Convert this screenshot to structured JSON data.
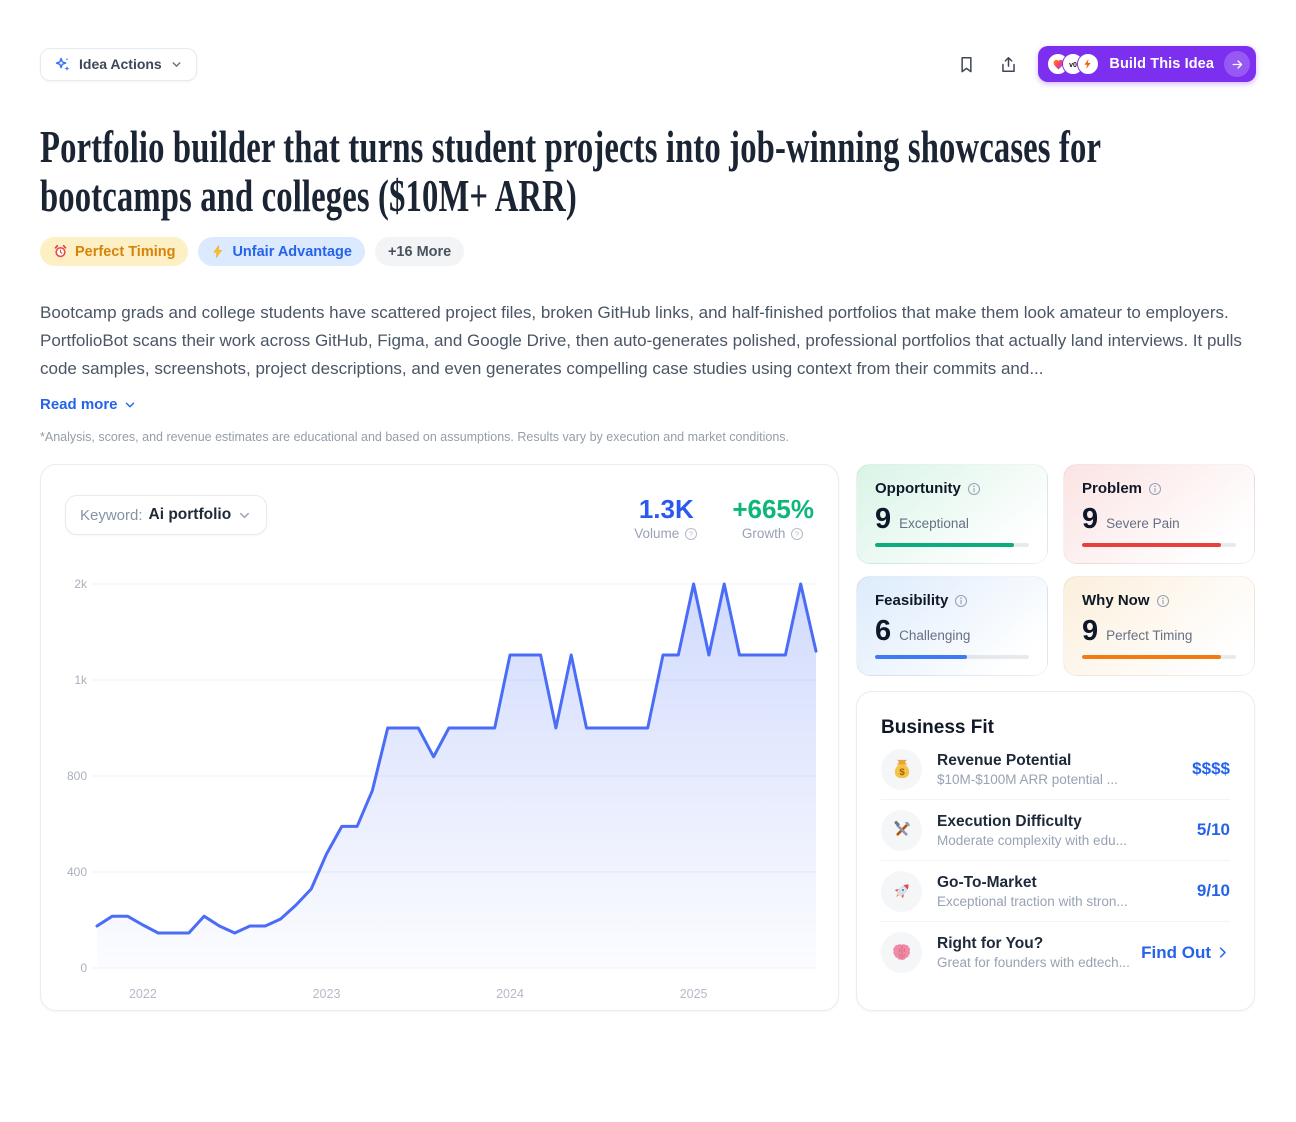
{
  "toolbar": {
    "idea_actions_label": "Idea Actions",
    "build_button_label": "Build This Idea",
    "build_logos": [
      "lovable-logo",
      "v0-logo",
      "bolt-logo"
    ]
  },
  "header": {
    "title": "Portfolio builder that turns student projects into job-winning showcases for bootcamps and colleges ($10M+ ARR)",
    "tags": [
      {
        "label": "Perfect Timing",
        "icon": "alarm-clock-icon",
        "bg": "#fdf0c4",
        "color": "#d8820b"
      },
      {
        "label": "Unfair Advantage",
        "icon": "lightning-icon",
        "bg": "#dbeafe",
        "color": "#2563eb"
      },
      {
        "label": "+16 More",
        "icon": "",
        "bg": "#f2f4f6",
        "color": "#4a5260"
      }
    ],
    "description": "Bootcamp grads and college students have scattered project files, broken GitHub links, and half-finished portfolios that make them look amateur to employers. PortfolioBot scans their work across GitHub, Figma, and Google Drive, then auto-generates polished, professional portfolios that actually land interviews. It pulls code samples, screenshots, project descriptions, and even generates compelling case studies using context from their commits and...",
    "read_more_label": "Read more",
    "disclaimer": "*Analysis, scores, and revenue estimates are educational and based on assumptions. Results vary by execution and market conditions."
  },
  "trend_card": {
    "keyword_label": "Keyword:",
    "keyword_value": "Ai portfolio",
    "volume_value": "1.3K",
    "volume_label": "Volume",
    "growth_value": "+665%",
    "growth_label": "Growth"
  },
  "chart_data": {
    "type": "area",
    "title": "Keyword search volume trend for 'Ai portfolio'",
    "xlabel": "",
    "ylabel": "",
    "x_tick_labels": [
      "2022",
      "2023",
      "2024",
      "2025"
    ],
    "x_first_tick_index": 3,
    "y_ticks": [
      {
        "label": "0",
        "value": 0
      },
      {
        "label": "400",
        "value": 400
      },
      {
        "label": "800",
        "value": 800
      },
      {
        "label": "1k",
        "value": 1000
      },
      {
        "label": "2k",
        "value": 2000
      }
    ],
    "y_scale_note": "tick labels equally spaced (non-linear value scale)",
    "grid": true,
    "legend": false,
    "line_color": "#4a6cf7",
    "fill_color": "#5b7cf7",
    "series": [
      {
        "name": "Monthly search volume",
        "start": "2021-10",
        "interval": "month",
        "values": [
          175,
          216,
          216,
          179,
          146,
          146,
          146,
          216,
          175,
          146,
          175,
          175,
          204,
          262,
          329,
          475,
          590,
          590,
          740,
          900,
          900,
          900,
          840,
          900,
          900,
          900,
          900,
          1260,
          1260,
          1260,
          900,
          1260,
          900,
          900,
          900,
          900,
          900,
          1260,
          1260,
          2000,
          1260,
          2000,
          1260,
          1260,
          1260,
          1260,
          2000,
          1300
        ]
      }
    ]
  },
  "scores": [
    {
      "label": "Opportunity",
      "value": 9,
      "descriptor": "Exceptional",
      "color": "#0eac7c",
      "bg": "#d9f4e7",
      "bar_pct": 90
    },
    {
      "label": "Problem",
      "value": 9,
      "descriptor": "Severe Pain",
      "color": "#e8413d",
      "bg": "#fbe3e3",
      "bar_pct": 90
    },
    {
      "label": "Feasibility",
      "value": 6,
      "descriptor": "Challenging",
      "color": "#3e7bf2",
      "bg": "#dcebfc",
      "bar_pct": 60
    },
    {
      "label": "Why Now",
      "value": 9,
      "descriptor": "Perfect Timing",
      "color": "#f07c12",
      "bg": "#fcefdc",
      "bar_pct": 90
    }
  ],
  "business_fit": {
    "title": "Business Fit",
    "rows": [
      {
        "icon": "money-bag-icon",
        "title": "Revenue Potential",
        "subtitle": "$10M-$100M ARR potential ...",
        "value": "$$$$"
      },
      {
        "icon": "tools-icon",
        "title": "Execution Difficulty",
        "subtitle": "Moderate complexity with edu...",
        "value": "5/10"
      },
      {
        "icon": "rocket-icon",
        "title": "Go-To-Market",
        "subtitle": "Exceptional traction with stron...",
        "value": "9/10"
      },
      {
        "icon": "brain-icon",
        "title": "Right for You?",
        "subtitle": "Great for founders with edtech...",
        "value": "Find Out"
      }
    ]
  }
}
